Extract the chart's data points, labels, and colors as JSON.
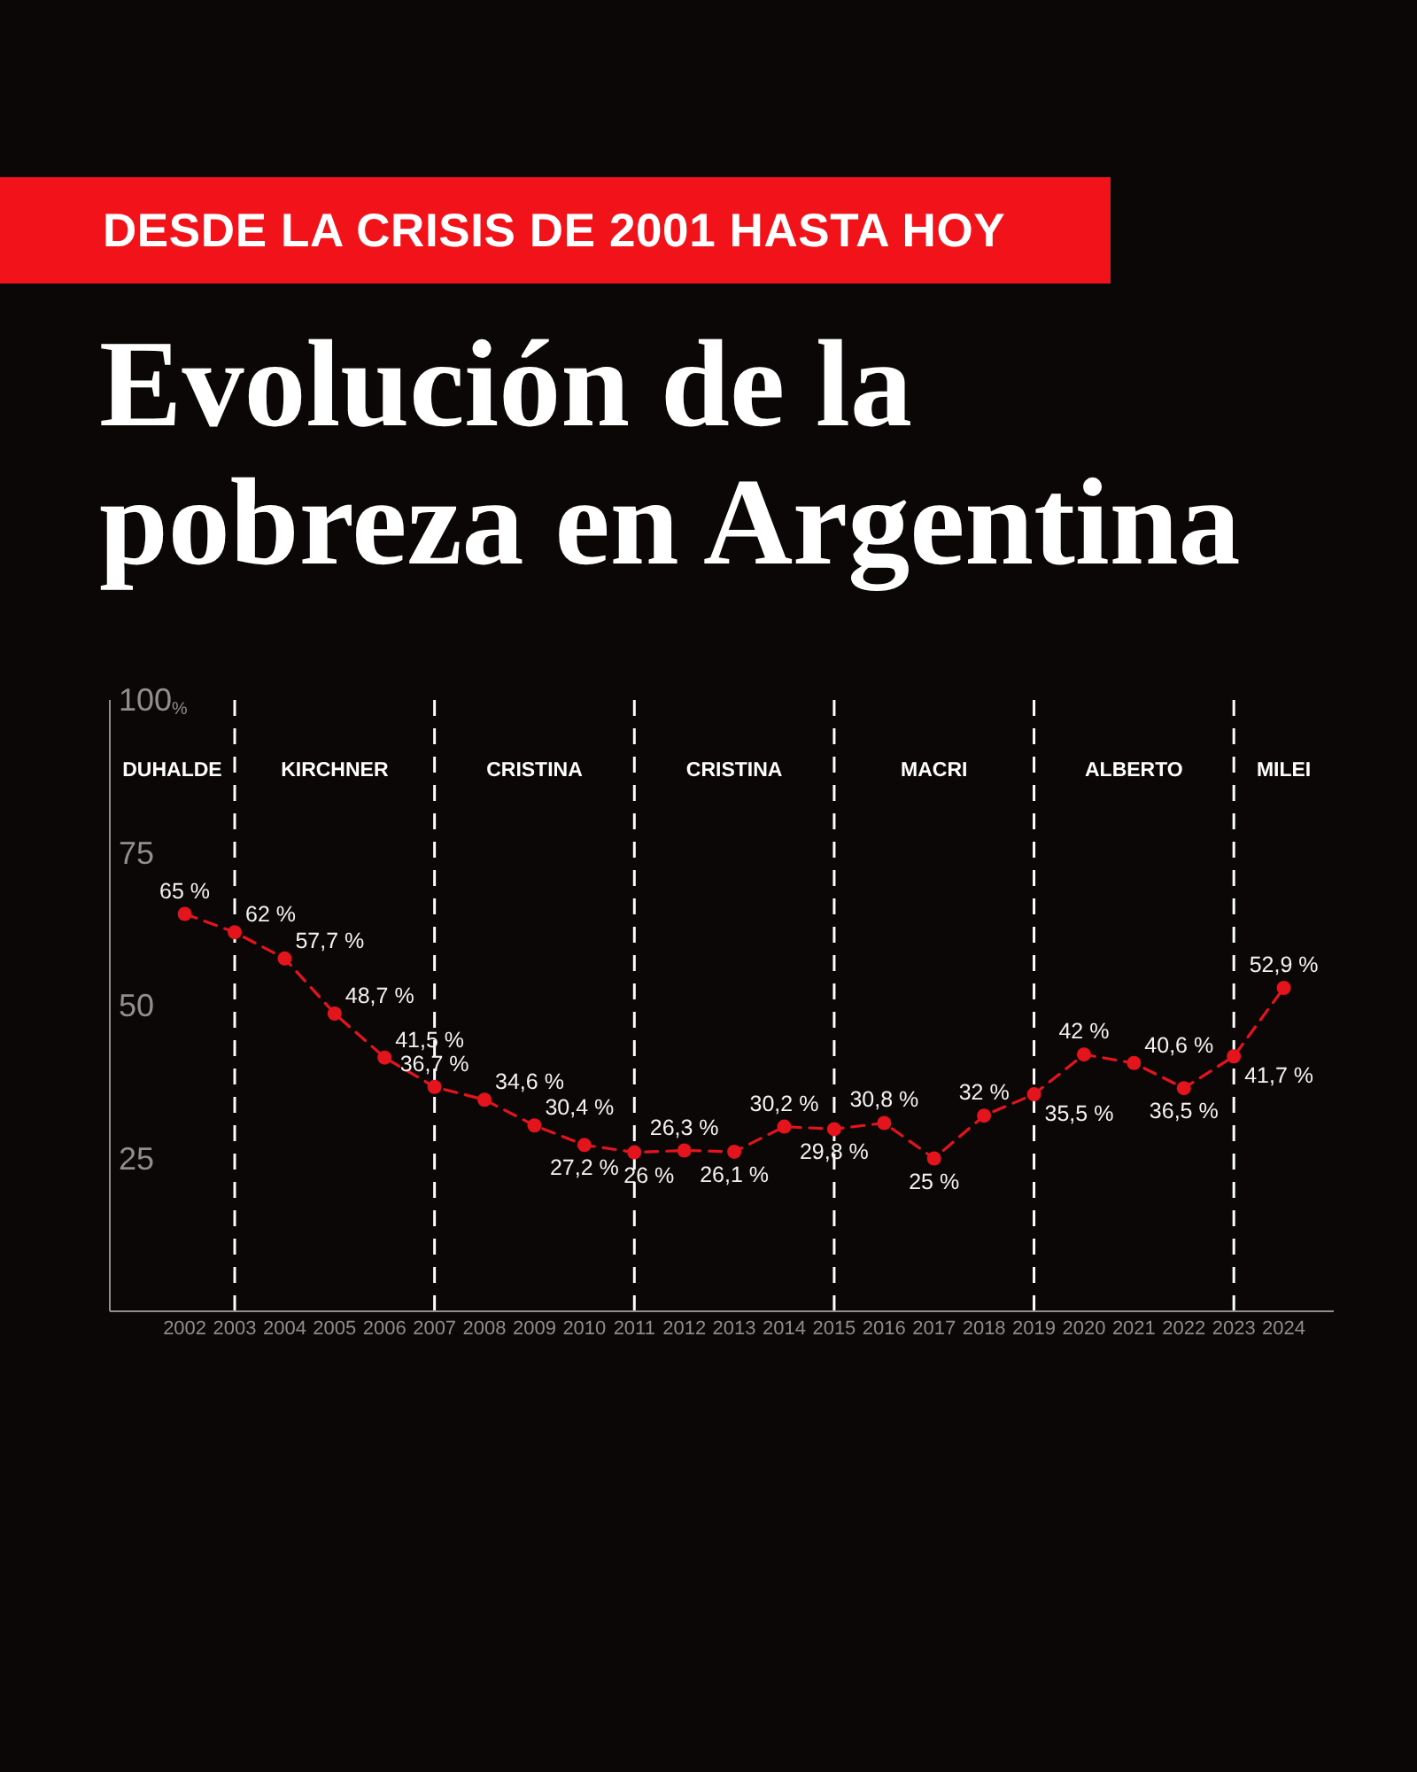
{
  "chart_data": {
    "type": "line",
    "subtitle": "DESDE LA CRISIS DE 2001 HASTA HOY",
    "title": "Evolución de la pobreza en Argentina",
    "x": [
      2002,
      2003,
      2004,
      2005,
      2006,
      2007,
      2008,
      2009,
      2010,
      2011,
      2012,
      2013,
      2014,
      2015,
      2016,
      2017,
      2018,
      2019,
      2020,
      2021,
      2022,
      2023,
      2024
    ],
    "values": [
      65,
      62,
      57.7,
      48.7,
      41.5,
      36.7,
      34.6,
      30.4,
      27.2,
      26,
      26.3,
      26.1,
      30.2,
      29.8,
      30.8,
      25,
      32,
      35.5,
      42,
      40.6,
      36.5,
      41.7,
      52.9
    ],
    "value_labels": [
      "65 %",
      "62 %",
      "57,7 %",
      "48,7 %",
      "41,5 %",
      "36,7 %",
      "34,6 %",
      "30,4 %",
      "27,2 %",
      "26 %",
      "26,3 %",
      "26,1 %",
      "30,2 %",
      "29,8 %",
      "30,8 %",
      "25 %",
      "32 %",
      "35,5 %",
      "42 %",
      "40,6 %",
      "36,5 %",
      "41,7 %",
      "52,9 %"
    ],
    "color": "#e3141b",
    "marker": "circle",
    "line_style": "dashed",
    "xlim": [
      2000.5,
      2025
    ],
    "xticks": [
      2002,
      2003,
      2004,
      2005,
      2006,
      2007,
      2008,
      2009,
      2010,
      2011,
      2012,
      2013,
      2014,
      2015,
      2016,
      2017,
      2018,
      2019,
      2020,
      2021,
      2022,
      2023,
      2024
    ],
    "ylim": [
      0,
      100
    ],
    "yticks": [
      25,
      50,
      75,
      {
        "value": 100,
        "label": "100$_{%}$"
      }
    ],
    "ref_lines": [
      {
        "axis": "x",
        "value": 2003,
        "color": "#ffffff",
        "line_style": "dashed"
      },
      {
        "axis": "x",
        "value": 2007,
        "color": "#ffffff",
        "line_style": "dashed"
      },
      {
        "axis": "x",
        "value": 2011,
        "color": "#ffffff",
        "line_style": "dashed"
      },
      {
        "axis": "x",
        "value": 2015,
        "color": "#ffffff",
        "line_style": "dashed"
      },
      {
        "axis": "x",
        "value": 2019,
        "color": "#ffffff",
        "line_style": "dashed"
      },
      {
        "axis": "x",
        "value": 2023,
        "color": "#ffffff",
        "line_style": "dashed"
      }
    ],
    "annotations": [
      "DUHALDE",
      "KIRCHNER",
      "CRISTINA",
      "CRISTINA",
      "MACRI",
      "ALBERTO",
      "MILEI"
    ],
    "grid": false,
    "legend": false
  }
}
